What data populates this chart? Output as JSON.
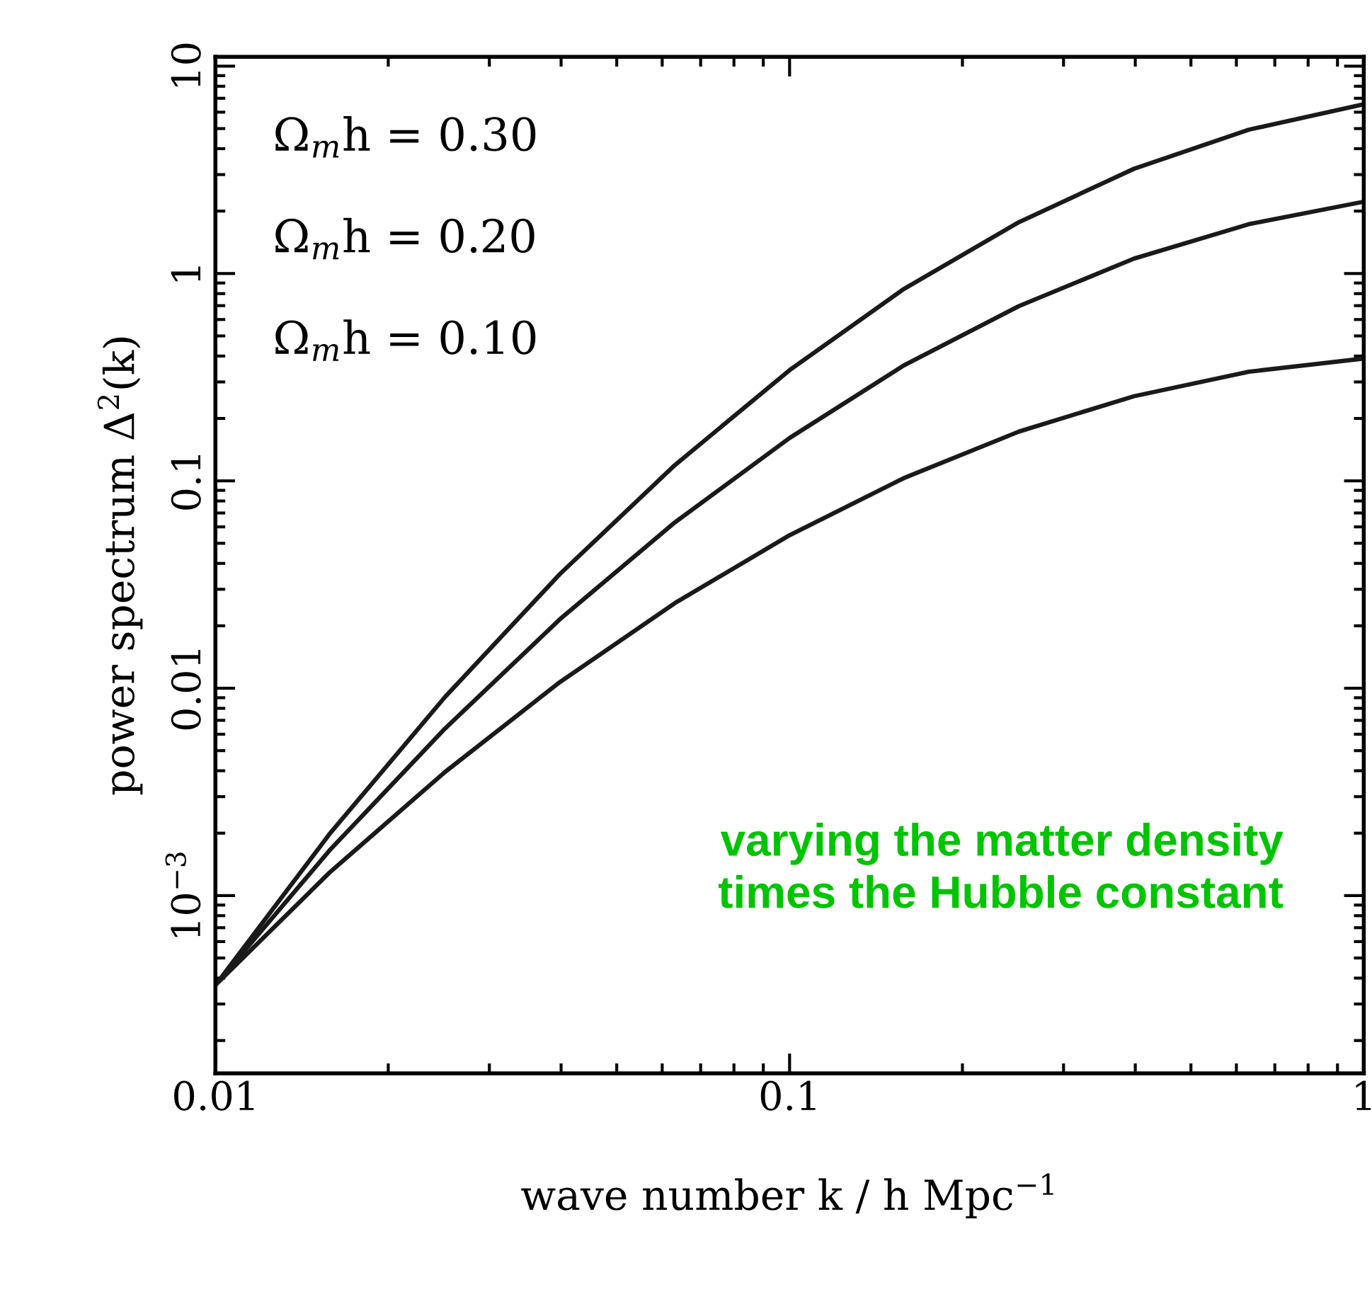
{
  "chart_data": {
    "type": "line",
    "xlabel": "wave number k / h Mpc$^{−1}$",
    "ylabel": "power spectrum Δ$^{2}$(k)",
    "log": "xy",
    "xlim": [
      0.01,
      1
    ],
    "ylim": [
      0.000139,
      11.1
    ],
    "xticks": [
      0.01,
      0.1,
      {
        "value": 1,
        "label": "1"
      }
    ],
    "yticks": [
      {
        "value": 0.001,
        "label": "10$^{−3}$"
      },
      0.01,
      0.1,
      {
        "value": 1,
        "label": "1"
      },
      {
        "value": 10,
        "label": "10"
      }
    ],
    "grid": false,
    "legend": false,
    "series": [
      {
        "color": "#1a1a1a",
        "x": [
          0.01,
          0.0158,
          0.0251,
          0.0398,
          0.0631,
          0.1,
          0.158,
          0.251,
          0.398,
          0.631,
          1
        ],
        "values": [
          0.00037,
          0.00198,
          0.00906,
          0.0355,
          0.119,
          0.342,
          0.841,
          1.77,
          3.2,
          4.94,
          6.55
        ]
      },
      {
        "color": "#1a1a1a",
        "x": [
          0.01,
          0.0158,
          0.0251,
          0.0398,
          0.0631,
          0.1,
          0.158,
          0.251,
          0.398,
          0.631,
          1
        ],
        "values": [
          0.00037,
          0.00165,
          0.00638,
          0.0215,
          0.063,
          0.161,
          0.36,
          0.697,
          1.18,
          1.73,
          2.22
        ]
      },
      {
        "color": "#1a1a1a",
        "x": [
          0.01,
          0.0158,
          0.0251,
          0.0398,
          0.0631,
          0.1,
          0.158,
          0.251,
          0.398,
          0.631,
          1
        ],
        "values": [
          0.00037,
          0.00129,
          0.00394,
          0.0107,
          0.0257,
          0.0547,
          0.103,
          0.173,
          0.256,
          0.336,
          0.389
        ]
      }
    ],
    "annotations": [
      "Ω$_{m}$h = 0.30",
      "Ω$_{m}$h = 0.20",
      "Ω$_{m}$h = 0.10",
      "varying the matter density\ntimes the Hubble constant"
    ]
  }
}
